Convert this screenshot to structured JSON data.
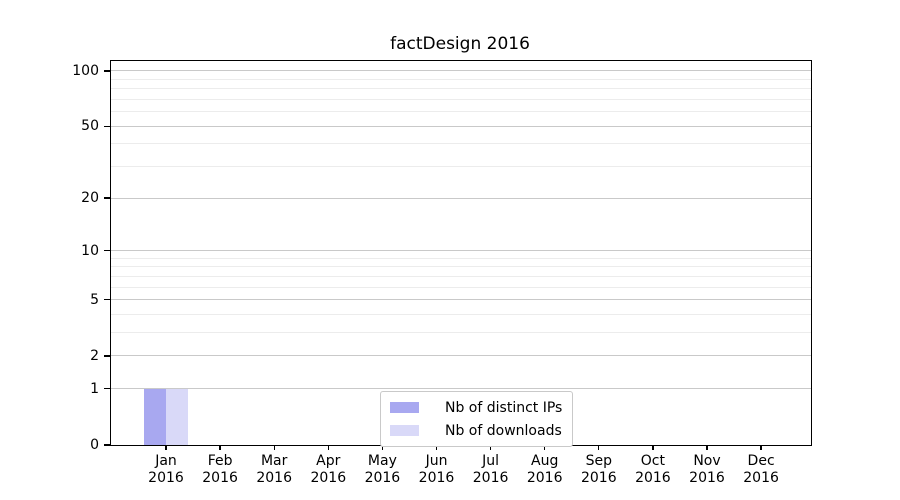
{
  "chart_data": {
    "type": "bar",
    "title": "factDesign 2016",
    "year": "2016",
    "categories": [
      "Jan",
      "Feb",
      "Mar",
      "Apr",
      "May",
      "Jun",
      "Jul",
      "Aug",
      "Sep",
      "Oct",
      "Nov",
      "Dec"
    ],
    "series": [
      {
        "name": "Nb of distinct IPs",
        "color": "#a8a8f0",
        "values": [
          1,
          0,
          0,
          0,
          0,
          0,
          0,
          0,
          0,
          0,
          0,
          0
        ]
      },
      {
        "name": "Nb of downloads",
        "color": "#d9d9f8",
        "values": [
          1,
          0,
          0,
          0,
          0,
          0,
          0,
          0,
          0,
          0,
          0,
          0
        ]
      }
    ],
    "yscale": "log1p",
    "ylim": [
      0,
      113
    ],
    "yticks": [
      0,
      1,
      2,
      5,
      10,
      20,
      50,
      100
    ],
    "minor_yticks": [
      3,
      4,
      6,
      7,
      8,
      9,
      30,
      40,
      60,
      70,
      80,
      90
    ],
    "grid": true,
    "legend_position": "lower center"
  },
  "colors": {
    "major_grid": "#c9c9c9",
    "minor_grid": "#ececec",
    "spine": "#000000",
    "text": "#000000",
    "legend_border": "#c9c9c9"
  }
}
